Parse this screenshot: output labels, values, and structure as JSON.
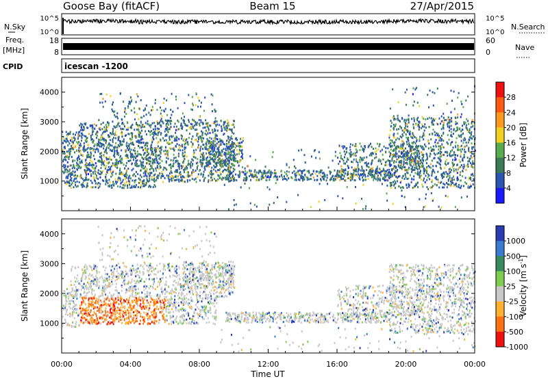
{
  "header": {
    "station": "Goose Bay (fitACF)",
    "beam": "Beam 15",
    "date": "27/Apr/2015"
  },
  "strip": {
    "nsky_label": "N.Sky",
    "nsky_ticks": [
      "10^5",
      "10^0"
    ],
    "nsearch_label": "N.Search",
    "nsearch_ticks": [
      "10^5",
      "10^0"
    ],
    "freq_label": "Freq.",
    "freq_unit": "[MHz]",
    "freq_ticks": [
      "18",
      "8"
    ],
    "nave_label": "Nave",
    "nave_ticks": [
      "60",
      "0"
    ],
    "cpid_label": "CPID",
    "cpid_value": "icescan -1200"
  },
  "chart_data": [
    {
      "type": "heatmap",
      "panel": "power",
      "ylabel": "Slant Range [km]",
      "ylim": [
        0,
        4500
      ],
      "y_ticks": [
        "1000",
        "2000",
        "3000",
        "4000"
      ],
      "x_ticks": [
        "00:00",
        "04:00",
        "08:00",
        "12:00",
        "16:00",
        "20:00",
        "00:00"
      ],
      "colorbar": {
        "label": "Power [dB]",
        "ticks": [
          "4",
          "8",
          "12",
          "16",
          "20",
          "24",
          "28"
        ],
        "colors": [
          "#1a1aff",
          "#2a55b0",
          "#3a7a55",
          "#5aaa50",
          "#f0d020",
          "#ff9a20",
          "#ff5a10",
          "#ee1111"
        ]
      },
      "scatter_regions": [
        {
          "t0": 0.0,
          "t1": 1.0,
          "r0": 800,
          "r1": 2700,
          "density": 0.65
        },
        {
          "t0": 1.0,
          "t1": 5.5,
          "r0": 800,
          "r1": 3000,
          "density": 0.6
        },
        {
          "t0": 5.5,
          "t1": 10.0,
          "r0": 1000,
          "r1": 3100,
          "density": 0.5
        },
        {
          "t0": 2.0,
          "t1": 9.0,
          "r0": 3000,
          "r1": 4000,
          "density": 0.12
        },
        {
          "t0": 8.0,
          "t1": 10.5,
          "r0": 1500,
          "r1": 2500,
          "density": 0.55
        },
        {
          "t0": 9.5,
          "t1": 19.0,
          "r0": 1050,
          "r1": 1400,
          "density": 0.75
        },
        {
          "t0": 10.0,
          "t1": 18.0,
          "r0": 1400,
          "r1": 2100,
          "density": 0.05
        },
        {
          "t0": 16.0,
          "t1": 21.0,
          "r0": 1200,
          "r1": 2300,
          "density": 0.4
        },
        {
          "t0": 19.0,
          "t1": 24.0,
          "r0": 800,
          "r1": 3200,
          "density": 0.45
        },
        {
          "t0": 19.0,
          "t1": 24.0,
          "r0": 3200,
          "r1": 4300,
          "density": 0.05
        },
        {
          "t0": 9.0,
          "t1": 24.0,
          "r0": 80,
          "r1": 1000,
          "density": 0.03
        }
      ]
    },
    {
      "type": "heatmap",
      "panel": "velocity",
      "ylabel": "Slant Range [km]",
      "ylim": [
        0,
        4500
      ],
      "y_ticks": [
        "1000",
        "2000",
        "3000",
        "4000"
      ],
      "x_ticks": [
        "00:00",
        "04:00",
        "08:00",
        "12:00",
        "16:00",
        "20:00",
        "00:00"
      ],
      "xlabel": "Time UT",
      "colorbar": {
        "label": "Velocity [m s",
        "label_sup": "-1",
        "label_close": "]",
        "ticks": [
          "1000",
          "500",
          "100",
          "25",
          "-25",
          "-100",
          "-500",
          "-1000"
        ],
        "colors": [
          "#2a3ab0",
          "#3a7ad0",
          "#3a8a60",
          "#80cc50",
          "#c8c8c8",
          "#ffb030",
          "#ff7010",
          "#ee1010"
        ]
      },
      "scatter_regions": [
        {
          "t0": 0.0,
          "t1": 1.0,
          "r0": 900,
          "r1": 2200,
          "density": 0.5
        },
        {
          "t0": 1.0,
          "t1": 5.5,
          "r0": 1000,
          "r1": 1900,
          "density": 0.85
        },
        {
          "t0": 0.5,
          "t1": 10.0,
          "r0": 1900,
          "r1": 3000,
          "density": 0.45
        },
        {
          "t0": 5.5,
          "t1": 9.0,
          "r0": 1000,
          "r1": 1900,
          "density": 0.55
        },
        {
          "t0": 7.0,
          "t1": 10.0,
          "r0": 2200,
          "r1": 3100,
          "density": 0.5
        },
        {
          "t0": 2.0,
          "t1": 9.0,
          "r0": 3000,
          "r1": 4300,
          "density": 0.08
        },
        {
          "t0": 9.5,
          "t1": 19.0,
          "r0": 1050,
          "r1": 1400,
          "density": 0.8
        },
        {
          "t0": 16.0,
          "t1": 21.0,
          "r0": 1300,
          "r1": 2300,
          "density": 0.35
        },
        {
          "t0": 19.0,
          "t1": 24.0,
          "r0": 700,
          "r1": 3000,
          "density": 0.45
        },
        {
          "t0": 9.0,
          "t1": 24.0,
          "r0": 80,
          "r1": 1000,
          "density": 0.04
        }
      ]
    }
  ]
}
